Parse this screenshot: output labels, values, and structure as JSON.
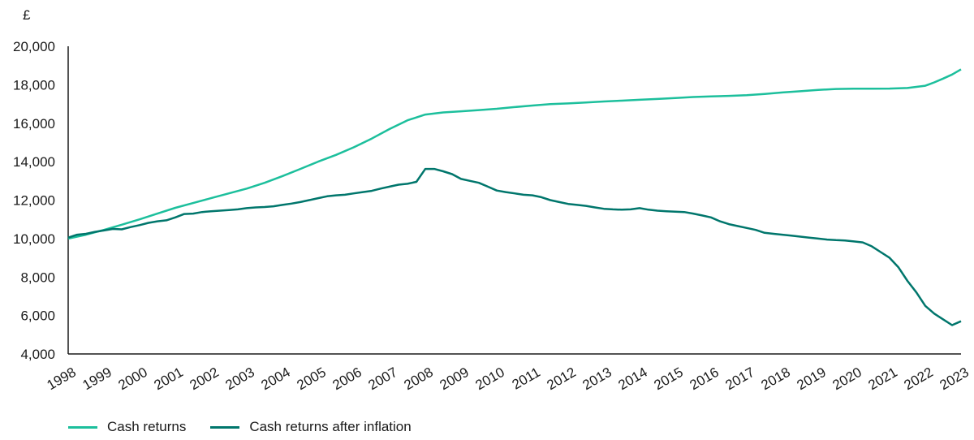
{
  "chart_data": {
    "type": "line",
    "unit_label": "£",
    "ylim": [
      4000,
      20000
    ],
    "y_ticks": [
      4000,
      6000,
      8000,
      10000,
      12000,
      14000,
      16000,
      18000,
      20000
    ],
    "y_tick_labels": [
      "4,000",
      "6,000",
      "8,000",
      "10,000",
      "12,000",
      "14,000",
      "16,000",
      "18,000",
      "20,000"
    ],
    "xlim": [
      1998,
      2023
    ],
    "x_ticks": [
      "1998",
      "1999",
      "2000",
      "2001",
      "2002",
      "2003",
      "2004",
      "2005",
      "2006",
      "2007",
      "2008",
      "2009",
      "2010",
      "2011",
      "2012",
      "2013",
      "2014",
      "2015",
      "2016",
      "2017",
      "2018",
      "2019",
      "2020",
      "2021",
      "2022",
      "2023"
    ],
    "grid": false,
    "legend_position": "bottom-left",
    "series": [
      {
        "name": "Cash returns",
        "color": "#1cbf9c",
        "x": [
          1998.0,
          1998.5,
          1999.0,
          1999.5,
          2000.0,
          2000.5,
          2001.0,
          2001.5,
          2002.0,
          2002.5,
          2003.0,
          2003.5,
          2004.0,
          2004.5,
          2005.0,
          2005.5,
          2006.0,
          2006.5,
          2007.0,
          2007.5,
          2008.0,
          2008.5,
          2009.0,
          2009.5,
          2010.0,
          2010.5,
          2011.0,
          2011.5,
          2012.0,
          2012.5,
          2013.0,
          2013.5,
          2014.0,
          2014.5,
          2015.0,
          2015.5,
          2016.0,
          2016.5,
          2017.0,
          2017.5,
          2018.0,
          2018.5,
          2019.0,
          2019.5,
          2020.0,
          2020.5,
          2021.0,
          2021.5,
          2022.0,
          2022.25,
          2022.5,
          2022.75,
          2023.0
        ],
        "values": [
          10000,
          10200,
          10450,
          10720,
          11000,
          11300,
          11600,
          11850,
          12100,
          12350,
          12600,
          12900,
          13250,
          13620,
          14000,
          14350,
          14750,
          15200,
          15700,
          16150,
          16450,
          16560,
          16620,
          16680,
          16750,
          16840,
          16920,
          16990,
          17030,
          17080,
          17130,
          17170,
          17220,
          17260,
          17310,
          17360,
          17390,
          17420,
          17460,
          17520,
          17600,
          17660,
          17730,
          17780,
          17790,
          17790,
          17800,
          17830,
          17950,
          18120,
          18320,
          18530,
          18800
        ]
      },
      {
        "name": "Cash returns after inflation",
        "color": "#00766c",
        "x": [
          1998.0,
          1998.25,
          1998.5,
          1998.75,
          1999.0,
          1999.25,
          1999.5,
          1999.75,
          2000.0,
          2000.25,
          2000.5,
          2000.75,
          2001.0,
          2001.25,
          2001.5,
          2001.75,
          2002.0,
          2002.25,
          2002.5,
          2002.75,
          2003.0,
          2003.25,
          2003.5,
          2003.75,
          2004.0,
          2004.25,
          2004.5,
          2004.75,
          2005.0,
          2005.25,
          2005.5,
          2005.75,
          2006.0,
          2006.25,
          2006.5,
          2006.75,
          2007.0,
          2007.25,
          2007.5,
          2007.75,
          2008.0,
          2008.25,
          2008.5,
          2008.75,
          2009.0,
          2009.25,
          2009.5,
          2009.75,
          2010.0,
          2010.25,
          2010.5,
          2010.75,
          2011.0,
          2011.25,
          2011.5,
          2011.75,
          2012.0,
          2012.25,
          2012.5,
          2012.75,
          2013.0,
          2013.25,
          2013.5,
          2013.75,
          2014.0,
          2014.25,
          2014.5,
          2014.75,
          2015.0,
          2015.25,
          2015.5,
          2015.75,
          2016.0,
          2016.25,
          2016.5,
          2016.75,
          2017.0,
          2017.25,
          2017.5,
          2017.75,
          2018.0,
          2018.25,
          2018.5,
          2018.75,
          2019.0,
          2019.25,
          2019.5,
          2019.75,
          2020.0,
          2020.25,
          2020.5,
          2020.75,
          2021.0,
          2021.25,
          2021.5,
          2021.75,
          2022.0,
          2022.25,
          2022.5,
          2022.75,
          2023.0
        ],
        "values": [
          10050,
          10200,
          10250,
          10350,
          10420,
          10500,
          10480,
          10600,
          10700,
          10820,
          10900,
          10950,
          11100,
          11280,
          11300,
          11380,
          11420,
          11450,
          11480,
          11520,
          11580,
          11620,
          11640,
          11680,
          11750,
          11820,
          11900,
          12000,
          12100,
          12200,
          12250,
          12280,
          12350,
          12420,
          12480,
          12600,
          12700,
          12800,
          12850,
          12950,
          13620,
          13620,
          13500,
          13350,
          13100,
          13000,
          12900,
          12700,
          12500,
          12420,
          12350,
          12280,
          12250,
          12150,
          12000,
          11900,
          11800,
          11750,
          11700,
          11620,
          11550,
          11520,
          11500,
          11520,
          11580,
          11500,
          11450,
          11420,
          11400,
          11380,
          11300,
          11200,
          11100,
          10900,
          10750,
          10650,
          10550,
          10450,
          10300,
          10250,
          10200,
          10150,
          10100,
          10050,
          10000,
          9950,
          9920,
          9900,
          9850,
          9800,
          9600,
          9300,
          9000,
          8500,
          7800,
          7200,
          6500,
          6100,
          5800,
          5500,
          5700
        ]
      }
    ]
  }
}
